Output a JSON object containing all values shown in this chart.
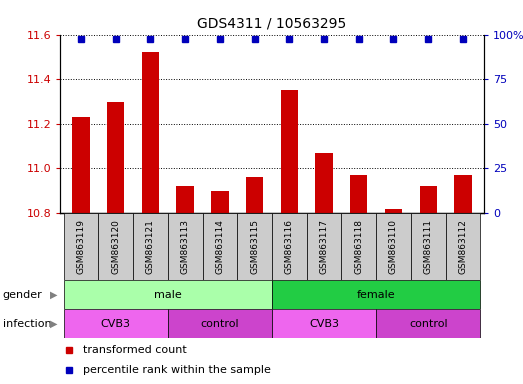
{
  "title": "GDS4311 / 10563295",
  "samples": [
    "GSM863119",
    "GSM863120",
    "GSM863121",
    "GSM863113",
    "GSM863114",
    "GSM863115",
    "GSM863116",
    "GSM863117",
    "GSM863118",
    "GSM863110",
    "GSM863111",
    "GSM863112"
  ],
  "bar_values": [
    11.23,
    11.3,
    11.52,
    10.92,
    10.9,
    10.96,
    11.35,
    11.07,
    10.97,
    10.82,
    10.92,
    10.97
  ],
  "ylim_left": [
    10.8,
    11.6
  ],
  "ylim_right": [
    0,
    100
  ],
  "yticks_left": [
    10.8,
    11.0,
    11.2,
    11.4,
    11.6
  ],
  "yticks_right": [
    0,
    25,
    50,
    75,
    100
  ],
  "bar_color": "#cc0000",
  "dot_color": "#0000bb",
  "bar_width": 0.5,
  "dot_size": 4.5,
  "gender_groups": [
    {
      "label": "male",
      "start": 0,
      "end": 6,
      "color": "#aaffaa"
    },
    {
      "label": "female",
      "start": 6,
      "end": 12,
      "color": "#22cc44"
    }
  ],
  "infection_groups": [
    {
      "label": "CVB3",
      "start": 0,
      "end": 3,
      "color": "#ee66ee"
    },
    {
      "label": "control",
      "start": 3,
      "end": 6,
      "color": "#cc44cc"
    },
    {
      "label": "CVB3",
      "start": 6,
      "end": 9,
      "color": "#ee66ee"
    },
    {
      "label": "control",
      "start": 9,
      "end": 12,
      "color": "#cc44cc"
    }
  ],
  "legend_items": [
    {
      "label": "transformed count",
      "color": "#cc0000"
    },
    {
      "label": "percentile rank within the sample",
      "color": "#0000bb"
    }
  ],
  "gender_label": "gender",
  "infection_label": "infection",
  "sample_box_color": "#cccccc",
  "background_color": "#ffffff",
  "tick_label_color_left": "#cc0000",
  "tick_label_color_right": "#0000bb"
}
